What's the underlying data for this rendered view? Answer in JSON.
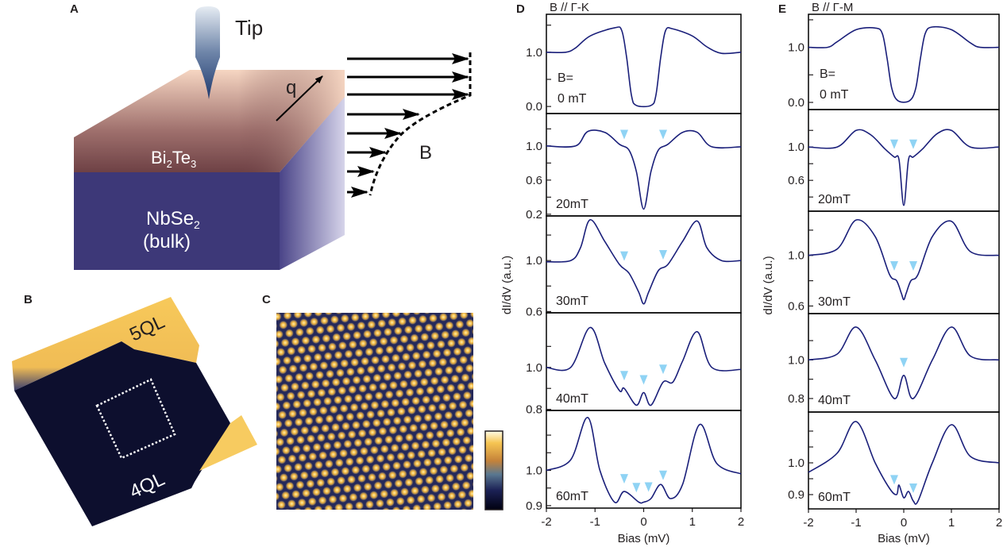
{
  "panels": {
    "A": {
      "label": "A",
      "tip": "Tip",
      "q": "q",
      "B": "B",
      "top_layer": {
        "base1": "Bi",
        "sub1": "2",
        "base2": "Te",
        "sub2": "3"
      },
      "bulk_layer": {
        "base": "NbSe",
        "sub": "2",
        "line2": "(bulk)"
      }
    },
    "B": {
      "label": "B",
      "upper_terrace": "5QL",
      "lower_terrace": "4QL"
    },
    "C": {
      "label": "C"
    }
  },
  "colors": {
    "curve": "#1a1f7a",
    "marker": "#8fd3f4",
    "bulk": "#3d3878",
    "top": "#6e4145"
  },
  "chart_data": [
    {
      "type": "line",
      "panel_label": "D",
      "title": "B // Γ-K",
      "xlabel": "Bias (mV)",
      "ylabel": "dI/dV (a.u.)",
      "xlim": [
        -2,
        2
      ],
      "xticks": [
        "-2",
        "-1",
        "0",
        "1",
        "2"
      ],
      "subplots": [
        {
          "field": "0 mT",
          "field_prefix": "B=",
          "ylim": [
            -0.13,
            1.7
          ],
          "yticks": [
            "0.0",
            "1.0"
          ],
          "ytick_values": [
            0.0,
            1.0
          ],
          "minor": [
            0.5,
            1.5
          ],
          "markers": [],
          "x": [
            -2,
            -1.6,
            -1.4,
            -1.1,
            -0.6,
            -0.45,
            -0.35,
            -0.25,
            -0.15,
            0.15,
            0.25,
            0.35,
            0.45,
            0.6,
            1.0,
            1.3,
            1.6,
            2
          ],
          "y": [
            1.0,
            1.0,
            1.08,
            1.3,
            1.45,
            1.4,
            0.9,
            0.2,
            0.02,
            0.02,
            0.2,
            0.9,
            1.4,
            1.43,
            1.3,
            1.1,
            0.98,
            1.0
          ]
        },
        {
          "field": "20mT",
          "ylim": [
            0.18,
            1.38
          ],
          "yticks": [
            "0.2",
            "0.6",
            "1.0"
          ],
          "ytick_values": [
            0.2,
            0.6,
            1.0
          ],
          "minor": [
            0.4,
            0.8,
            1.2
          ],
          "markers": [
            -0.4,
            0.4
          ],
          "x": [
            -2,
            -1.4,
            -1.15,
            -0.8,
            -0.5,
            -0.3,
            -0.15,
            0,
            0.15,
            0.3,
            0.5,
            0.8,
            1.1,
            1.4,
            2
          ],
          "y": [
            1.0,
            1.0,
            1.17,
            1.16,
            1.02,
            0.95,
            0.7,
            0.26,
            0.7,
            0.95,
            1.02,
            1.16,
            1.16,
            0.99,
            0.99
          ]
        },
        {
          "field": "30mT",
          "ylim": [
            0.59,
            1.35
          ],
          "yticks": [
            "0.6",
            "1.0"
          ],
          "ytick_values": [
            0.6,
            1.0
          ],
          "minor": [
            0.8,
            1.2
          ],
          "markers": [
            -0.4,
            0.4
          ],
          "x": [
            -2,
            -1.5,
            -1.3,
            -1.1,
            -0.8,
            -0.5,
            -0.3,
            -0.1,
            0,
            0.1,
            0.3,
            0.5,
            0.8,
            1.1,
            1.3,
            1.6,
            2
          ],
          "y": [
            0.99,
            1.0,
            1.1,
            1.32,
            1.15,
            0.97,
            0.9,
            0.75,
            0.66,
            0.75,
            0.92,
            0.97,
            1.15,
            1.31,
            1.1,
            1.0,
            1.0
          ]
        },
        {
          "field": "40mT",
          "ylim": [
            0.795,
            1.26
          ],
          "yticks": [
            "0.8",
            "1.0"
          ],
          "ytick_values": [
            0.8,
            1.0
          ],
          "minor": [
            0.9,
            1.1
          ],
          "markers": [
            -0.4,
            0.0,
            0.4
          ],
          "x": [
            -2,
            -1.5,
            -1.1,
            -0.8,
            -0.5,
            -0.4,
            -0.15,
            0,
            0.15,
            0.4,
            0.6,
            0.8,
            1.1,
            1.4,
            2
          ],
          "y": [
            1.0,
            1.0,
            1.19,
            1.02,
            0.89,
            0.9,
            0.82,
            0.88,
            0.82,
            0.93,
            0.93,
            1.03,
            1.17,
            1.0,
            0.99
          ]
        },
        {
          "field": "60mT",
          "ylim": [
            0.893,
            1.17
          ],
          "yticks": [
            "0.9",
            "1.0"
          ],
          "ytick_values": [
            0.9,
            1.0
          ],
          "minor": [
            0.95,
            1.05,
            1.1
          ],
          "markers": [
            -0.4,
            -0.15,
            0.1,
            0.4
          ],
          "x": [
            -2,
            -1.5,
            -1.15,
            -0.9,
            -0.6,
            -0.4,
            -0.1,
            0,
            0.15,
            0.35,
            0.55,
            0.8,
            1.15,
            1.5,
            2
          ],
          "y": [
            1.0,
            1.03,
            1.15,
            1.0,
            0.91,
            0.94,
            0.91,
            0.91,
            0.92,
            0.96,
            0.92,
            0.96,
            1.13,
            1.02,
            0.99
          ]
        }
      ]
    },
    {
      "type": "line",
      "panel_label": "E",
      "title": "B // Γ-M",
      "xlabel": "Bias (mV)",
      "ylabel": "dI/dV (a.u.)",
      "xlim": [
        -2,
        2
      ],
      "xticks": [
        "-2",
        "-1",
        "0",
        "1",
        "2"
      ],
      "subplots": [
        {
          "field": "0 mT",
          "field_prefix": "B=",
          "ylim": [
            -0.13,
            1.6
          ],
          "yticks": [
            "0.0",
            "1.0"
          ],
          "ytick_values": [
            0.0,
            1.0
          ],
          "minor": [
            0.5,
            1.5
          ],
          "markers": [],
          "x": [
            -2,
            -1.6,
            -1.4,
            -1.0,
            -0.6,
            -0.45,
            -0.35,
            -0.25,
            -0.12,
            0.12,
            0.25,
            0.35,
            0.45,
            0.6,
            1.0,
            1.4,
            1.6,
            2
          ],
          "y": [
            1.0,
            1.0,
            1.1,
            1.32,
            1.35,
            1.25,
            0.8,
            0.25,
            0.03,
            0.03,
            0.25,
            0.8,
            1.25,
            1.37,
            1.32,
            1.08,
            1.0,
            1.0
          ]
        },
        {
          "field": "20mT",
          "ylim": [
            0.23,
            1.45
          ],
          "yticks": [
            "0.6",
            "1.0"
          ],
          "ytick_values": [
            0.6,
            1.0
          ],
          "minor": [
            0.4,
            0.8,
            1.2
          ],
          "markers": [
            -0.2,
            0.2
          ],
          "x": [
            -2,
            -1.4,
            -1.0,
            -0.7,
            -0.4,
            -0.2,
            -0.1,
            0,
            0.1,
            0.2,
            0.4,
            0.7,
            1.0,
            1.4,
            2
          ],
          "y": [
            1.0,
            1.0,
            1.2,
            1.15,
            0.98,
            0.88,
            0.85,
            0.3,
            0.85,
            0.88,
            0.98,
            1.16,
            1.2,
            1.0,
            1.0
          ]
        },
        {
          "field": "30mT",
          "ylim": [
            0.54,
            1.35
          ],
          "yticks": [
            "0.6",
            "1.0"
          ],
          "ytick_values": [
            0.6,
            1.0
          ],
          "minor": [
            0.8,
            1.2
          ],
          "markers": [
            -0.2,
            0.2
          ],
          "x": [
            -2,
            -1.4,
            -1.0,
            -0.6,
            -0.3,
            -0.15,
            -0.05,
            0,
            0.05,
            0.15,
            0.3,
            0.6,
            1.0,
            1.4,
            2
          ],
          "y": [
            1.0,
            1.05,
            1.28,
            1.15,
            0.85,
            0.8,
            0.7,
            0.65,
            0.7,
            0.8,
            0.85,
            1.15,
            1.27,
            1.03,
            1.0
          ]
        },
        {
          "field": "40mT",
          "ylim": [
            0.73,
            1.24
          ],
          "yticks": [
            "0.8",
            "1.0"
          ],
          "ytick_values": [
            0.8,
            1.0
          ],
          "minor": [
            0.9,
            1.1
          ],
          "markers": [
            0.0
          ],
          "x": [
            -2,
            -1.4,
            -1.0,
            -0.6,
            -0.2,
            0,
            0.2,
            0.6,
            1.0,
            1.4,
            2
          ],
          "y": [
            1.0,
            1.03,
            1.17,
            1.0,
            0.8,
            0.92,
            0.8,
            1.0,
            1.17,
            1.02,
            1.0
          ]
        },
        {
          "field": "60mT",
          "ylim": [
            0.855,
            1.16
          ],
          "yticks": [
            "0.9",
            "1.0"
          ],
          "ytick_values": [
            0.9,
            1.0
          ],
          "minor": [
            0.95,
            1.05,
            1.1
          ],
          "markers": [
            -0.2,
            0.2
          ],
          "x": [
            -2,
            -1.4,
            -1.0,
            -0.6,
            -0.3,
            -0.15,
            -0.1,
            0,
            0.1,
            0.2,
            0.3,
            0.6,
            1.0,
            1.4,
            2
          ],
          "y": [
            0.97,
            1.03,
            1.13,
            1.0,
            0.92,
            0.9,
            0.93,
            0.89,
            0.91,
            0.88,
            0.88,
            1.0,
            1.12,
            1.02,
            1.0
          ]
        }
      ]
    }
  ]
}
